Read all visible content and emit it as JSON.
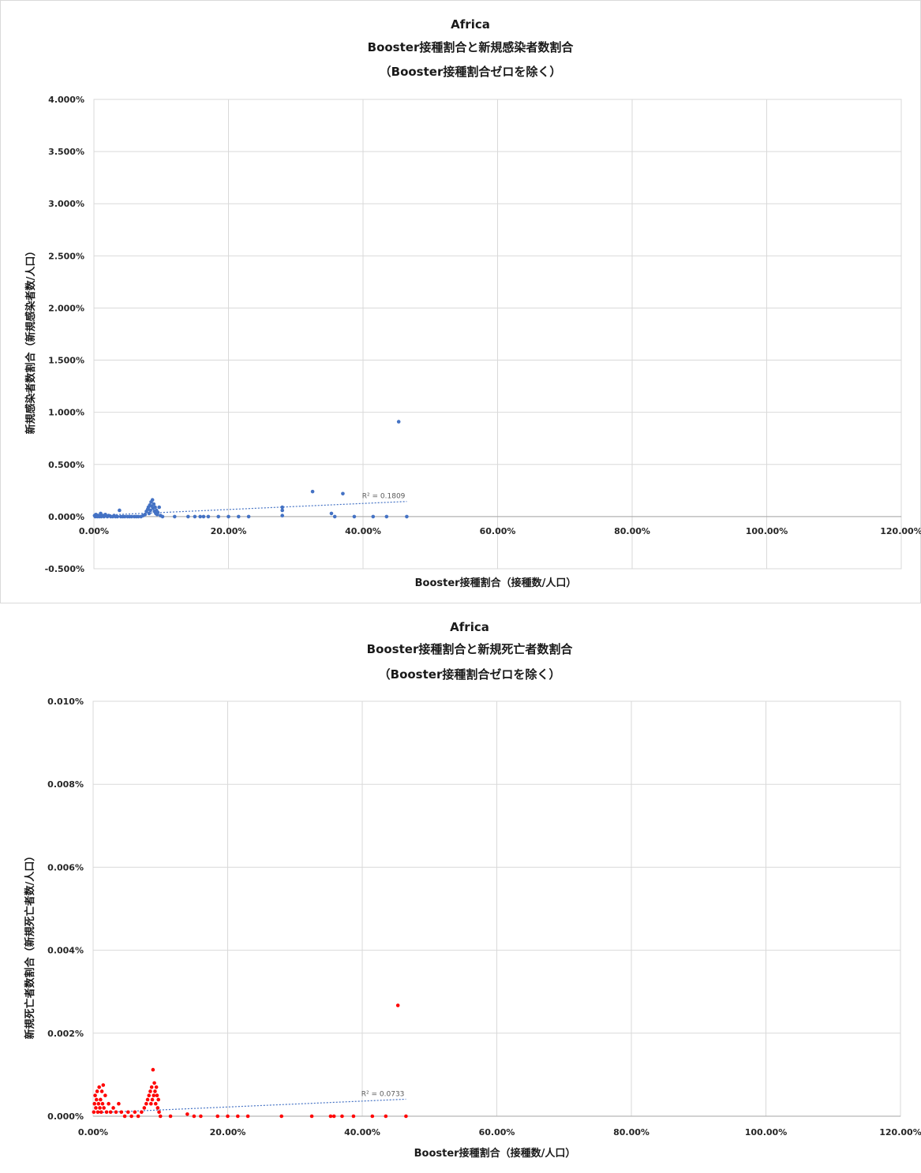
{
  "chart_data": [
    {
      "type": "scatter",
      "title": [
        "Africa",
        "Booster接種割合と新規感染者数割合",
        "（Booster接種割合ゼロを除く）"
      ],
      "xlabel": "Booster接種割合（接種数/人口）",
      "ylabel": "新規感染者数割合（新規感染者数/人口）",
      "xlim": [
        0,
        120
      ],
      "ylim": [
        -0.5,
        4.0
      ],
      "x_ticks": [
        "0.00%",
        "20.00%",
        "40.00%",
        "60.00%",
        "80.00%",
        "100.00%",
        "120.00%"
      ],
      "y_ticks": [
        "-0.500%",
        "0.000%",
        "0.500%",
        "1.000%",
        "1.500%",
        "2.000%",
        "2.500%",
        "3.000%",
        "3.500%",
        "4.000%"
      ],
      "grid": true,
      "color": "#4472c4",
      "trendline": {
        "x": [
          0,
          46.5
        ],
        "y": [
          0.01,
          0.145
        ],
        "label": "R² = 0.1809"
      },
      "points": [
        [
          0.1,
          0.01
        ],
        [
          0.2,
          0.0
        ],
        [
          0.3,
          0.02
        ],
        [
          0.5,
          0.0
        ],
        [
          0.6,
          0.01
        ],
        [
          0.8,
          0.0
        ],
        [
          1.0,
          0.03
        ],
        [
          1.1,
          0.0
        ],
        [
          1.3,
          0.01
        ],
        [
          1.5,
          0.0
        ],
        [
          1.7,
          0.02
        ],
        [
          2.0,
          0.0
        ],
        [
          2.2,
          0.01
        ],
        [
          2.5,
          0.0
        ],
        [
          2.8,
          0.0
        ],
        [
          3.0,
          0.01
        ],
        [
          3.2,
          0.0
        ],
        [
          3.5,
          0.0
        ],
        [
          3.8,
          0.06
        ],
        [
          4.0,
          0.0
        ],
        [
          4.3,
          0.0
        ],
        [
          4.6,
          0.0
        ],
        [
          5.0,
          0.0
        ],
        [
          5.3,
          0.0
        ],
        [
          5.6,
          0.0
        ],
        [
          6.0,
          0.0
        ],
        [
          6.3,
          0.0
        ],
        [
          6.6,
          0.0
        ],
        [
          7.0,
          0.0
        ],
        [
          7.3,
          0.01
        ],
        [
          7.6,
          0.02
        ],
        [
          7.8,
          0.05
        ],
        [
          8.0,
          0.07
        ],
        [
          8.1,
          0.09
        ],
        [
          8.2,
          0.03
        ],
        [
          8.3,
          0.11
        ],
        [
          8.4,
          0.06
        ],
        [
          8.5,
          0.14
        ],
        [
          8.6,
          0.1
        ],
        [
          8.7,
          0.16
        ],
        [
          8.8,
          0.08
        ],
        [
          8.9,
          0.12
        ],
        [
          9.0,
          0.05
        ],
        [
          9.1,
          0.09
        ],
        [
          9.2,
          0.03
        ],
        [
          9.3,
          0.06
        ],
        [
          9.4,
          0.02
        ],
        [
          9.5,
          0.04
        ],
        [
          9.7,
          0.09
        ],
        [
          9.9,
          0.01
        ],
        [
          10.2,
          0.0
        ],
        [
          12.0,
          0.0
        ],
        [
          14.0,
          0.0
        ],
        [
          15.0,
          0.0
        ],
        [
          15.8,
          0.0
        ],
        [
          16.3,
          0.0
        ],
        [
          17.0,
          0.0
        ],
        [
          18.5,
          0.0
        ],
        [
          20.0,
          0.0
        ],
        [
          21.5,
          0.0
        ],
        [
          23.0,
          0.0
        ],
        [
          28.0,
          0.09
        ],
        [
          28.0,
          0.06
        ],
        [
          28.0,
          0.01
        ],
        [
          32.5,
          0.24
        ],
        [
          35.3,
          0.03
        ],
        [
          35.8,
          0.0
        ],
        [
          37.0,
          0.22
        ],
        [
          38.7,
          0.0
        ],
        [
          41.5,
          0.0
        ],
        [
          43.5,
          0.0
        ],
        [
          45.3,
          0.91
        ],
        [
          46.5,
          0.0
        ]
      ]
    },
    {
      "type": "scatter",
      "title": [
        "Africa",
        "Booster接種割合と新規死亡者数割合",
        "（Booster接種割合ゼロを除く）"
      ],
      "xlabel": "Booster接種割合（接種数/人口）",
      "ylabel": "新規死亡者数割合（新規死亡者数/人口）",
      "xlim": [
        0,
        120
      ],
      "ylim": [
        0,
        0.01
      ],
      "x_ticks": [
        "0.00%",
        "20.00%",
        "40.00%",
        "60.00%",
        "80.00%",
        "100.00%",
        "120.00%"
      ],
      "y_ticks": [
        "0.000%",
        "0.002%",
        "0.004%",
        "0.006%",
        "0.008%",
        "0.010%"
      ],
      "grid": true,
      "color": "#ff0000",
      "trendline": {
        "x": [
          0,
          46.5
        ],
        "y": [
          8e-05,
          0.00041
        ],
        "label": "R² = 0.0733"
      },
      "points": [
        [
          0.1,
          0.0001
        ],
        [
          0.2,
          0.0003
        ],
        [
          0.3,
          0.0005
        ],
        [
          0.4,
          0.0002
        ],
        [
          0.5,
          0.0004
        ],
        [
          0.6,
          0.0006
        ],
        [
          0.7,
          0.0001
        ],
        [
          0.8,
          0.0003
        ],
        [
          0.9,
          0.0007
        ],
        [
          1.0,
          0.0002
        ],
        [
          1.1,
          0.0004
        ],
        [
          1.2,
          0.0001
        ],
        [
          1.3,
          0.0006
        ],
        [
          1.4,
          0.0003
        ],
        [
          1.5,
          0.00075
        ],
        [
          1.6,
          0.0002
        ],
        [
          1.8,
          0.0005
        ],
        [
          2.0,
          0.0001
        ],
        [
          2.3,
          0.0003
        ],
        [
          2.6,
          0.0001
        ],
        [
          3.0,
          0.0002
        ],
        [
          3.4,
          0.0001
        ],
        [
          3.8,
          0.0003
        ],
        [
          4.2,
          0.0001
        ],
        [
          4.7,
          0.0
        ],
        [
          5.2,
          0.0001
        ],
        [
          5.7,
          0.0
        ],
        [
          6.2,
          0.0001
        ],
        [
          6.7,
          0.0
        ],
        [
          7.2,
          0.0001
        ],
        [
          7.6,
          0.0002
        ],
        [
          7.9,
          0.0003
        ],
        [
          8.1,
          0.0004
        ],
        [
          8.3,
          0.0005
        ],
        [
          8.5,
          0.0006
        ],
        [
          8.6,
          0.0003
        ],
        [
          8.7,
          0.0007
        ],
        [
          8.8,
          0.0004
        ],
        [
          8.9,
          0.00112
        ],
        [
          9.0,
          0.0005
        ],
        [
          9.1,
          0.0008
        ],
        [
          9.2,
          0.0006
        ],
        [
          9.3,
          0.0003
        ],
        [
          9.4,
          0.0007
        ],
        [
          9.5,
          0.0005
        ],
        [
          9.6,
          0.0002
        ],
        [
          9.7,
          0.0004
        ],
        [
          9.8,
          0.0001
        ],
        [
          10.0,
          0.0
        ],
        [
          11.5,
          0.0
        ],
        [
          14.0,
          5e-05
        ],
        [
          15.0,
          0.0
        ],
        [
          16.0,
          0.0
        ],
        [
          18.5,
          0.0
        ],
        [
          20.0,
          0.0
        ],
        [
          21.5,
          0.0
        ],
        [
          23.0,
          0.0
        ],
        [
          28.0,
          0.0
        ],
        [
          32.5,
          0.0
        ],
        [
          35.3,
          0.0
        ],
        [
          35.8,
          0.0
        ],
        [
          37.0,
          0.0
        ],
        [
          38.7,
          0.0
        ],
        [
          41.5,
          0.0
        ],
        [
          43.5,
          0.0
        ],
        [
          45.3,
          0.00267
        ],
        [
          46.5,
          0.0
        ]
      ]
    }
  ]
}
